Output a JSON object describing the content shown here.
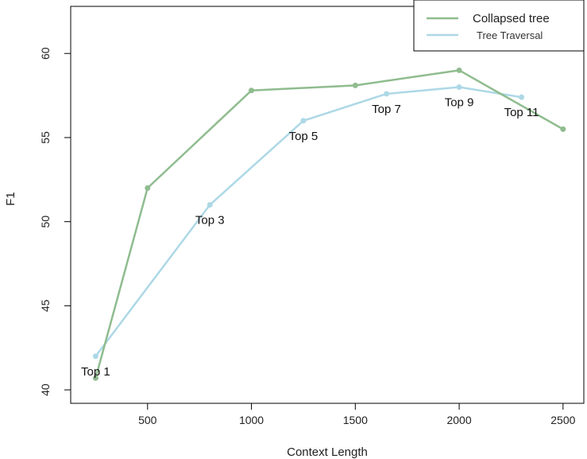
{
  "chart_data": {
    "type": "line",
    "title": "",
    "xlabel": "Context Length",
    "ylabel": "F1",
    "xlim": [
      130,
      2600
    ],
    "ylim": [
      39.2,
      62.8
    ],
    "xticks": [
      500,
      1000,
      1500,
      2000,
      2500
    ],
    "yticks": [
      40,
      45,
      50,
      55,
      60
    ],
    "grid": false,
    "legend_position": "top-right",
    "series": [
      {
        "name": "Collapsed tree",
        "color": "#8fbc8f",
        "x": [
          250,
          500,
          1000,
          1500,
          2000,
          2500
        ],
        "y": [
          40.7,
          52.0,
          57.8,
          58.1,
          59.0,
          55.5
        ]
      },
      {
        "name": "Tree Traversal",
        "color": "#add8e6",
        "x": [
          250,
          800,
          1250,
          1650,
          2000,
          2300
        ],
        "y": [
          42.0,
          51.0,
          56.0,
          57.6,
          58.0,
          57.4
        ],
        "point_labels": [
          "Top 1",
          "Top 3",
          "Top 5",
          "Top 7",
          "Top 9",
          "Top 11"
        ]
      }
    ]
  }
}
